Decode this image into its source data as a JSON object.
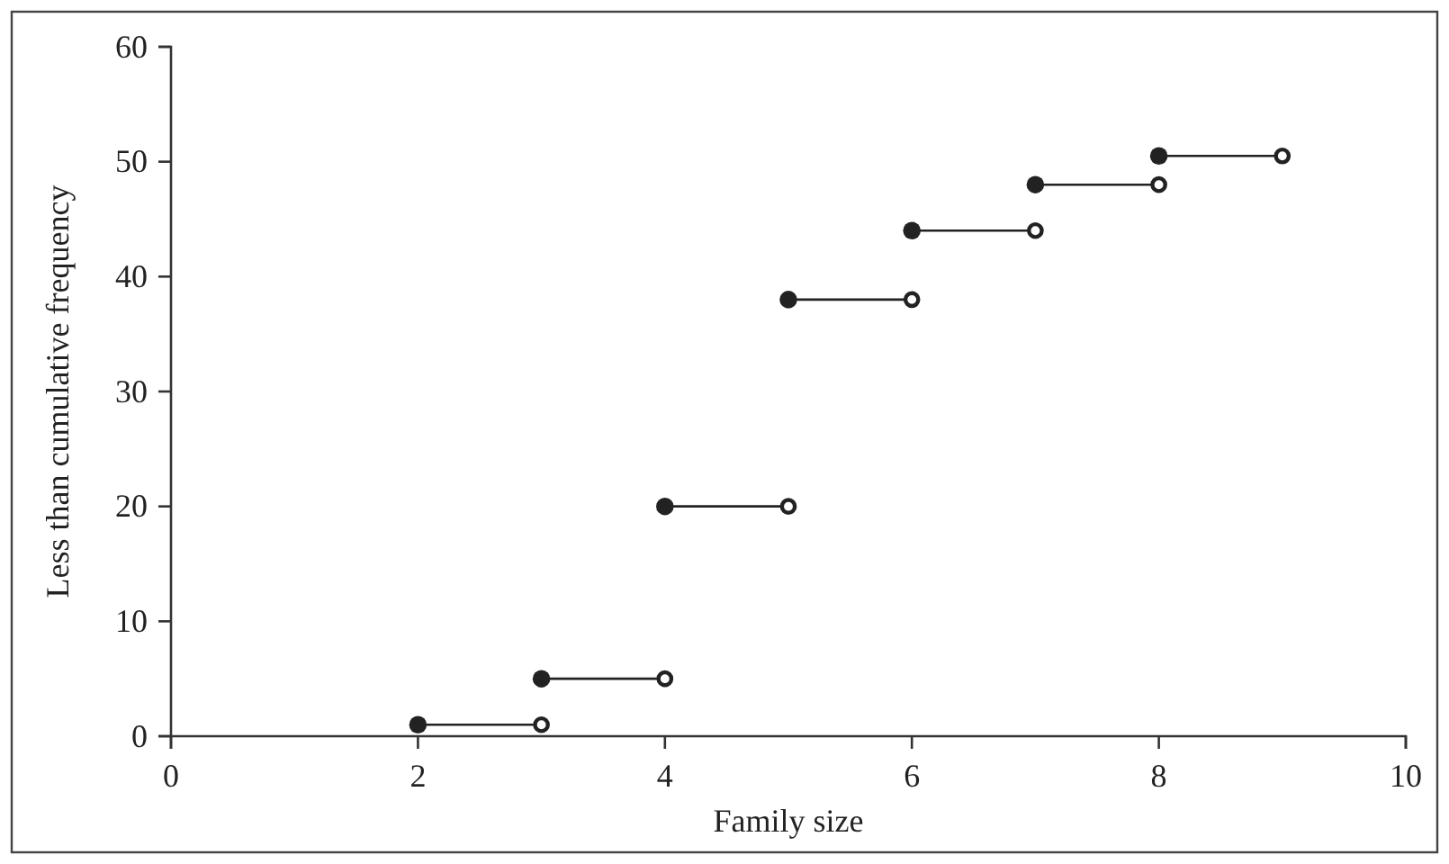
{
  "chart_data": {
    "type": "line",
    "xlabel": "Family size",
    "ylabel": "Less than cumulative frequency",
    "series": [
      {
        "color": "#222222",
        "marker": "none",
        "x": [
          2,
          3
        ],
        "values": [
          1,
          1
        ]
      },
      {
        "color": "#222222",
        "marker": "none",
        "x": [
          3,
          4
        ],
        "values": [
          5,
          5
        ]
      },
      {
        "color": "#222222",
        "marker": "none",
        "x": [
          4,
          5
        ],
        "values": [
          20,
          20
        ]
      },
      {
        "color": "#222222",
        "marker": "none",
        "x": [
          5,
          6
        ],
        "values": [
          38,
          38
        ]
      },
      {
        "color": "#222222",
        "marker": "none",
        "x": [
          6,
          7
        ],
        "values": [
          44,
          44
        ]
      },
      {
        "color": "#222222",
        "marker": "none",
        "x": [
          7,
          8
        ],
        "values": [
          48,
          48
        ]
      },
      {
        "color": "#222222",
        "marker": "none",
        "x": [
          8,
          9
        ],
        "values": [
          50.5,
          50.5
        ]
      },
      {
        "type": "scatter",
        "color": "#222222",
        "marker": "circle",
        "x": [
          2,
          3,
          4,
          5,
          6,
          7,
          8
        ],
        "values": [
          1,
          5,
          20,
          38,
          44,
          48,
          50.5
        ]
      },
      {
        "type": "scatter",
        "color": "#ffffff",
        "marker": "circle",
        "x": [
          3,
          4,
          5,
          6,
          7,
          8,
          9
        ],
        "values": [
          1,
          5,
          20,
          38,
          44,
          48,
          50.5
        ]
      }
    ],
    "xlim": [
      0,
      10
    ],
    "xticks": [
      0,
      2,
      4,
      6,
      8,
      10
    ],
    "ylim": [
      0,
      60
    ],
    "yticks": [
      0,
      10,
      20,
      30,
      40,
      50,
      60
    ],
    "line_style": "solid",
    "grid": false
  }
}
